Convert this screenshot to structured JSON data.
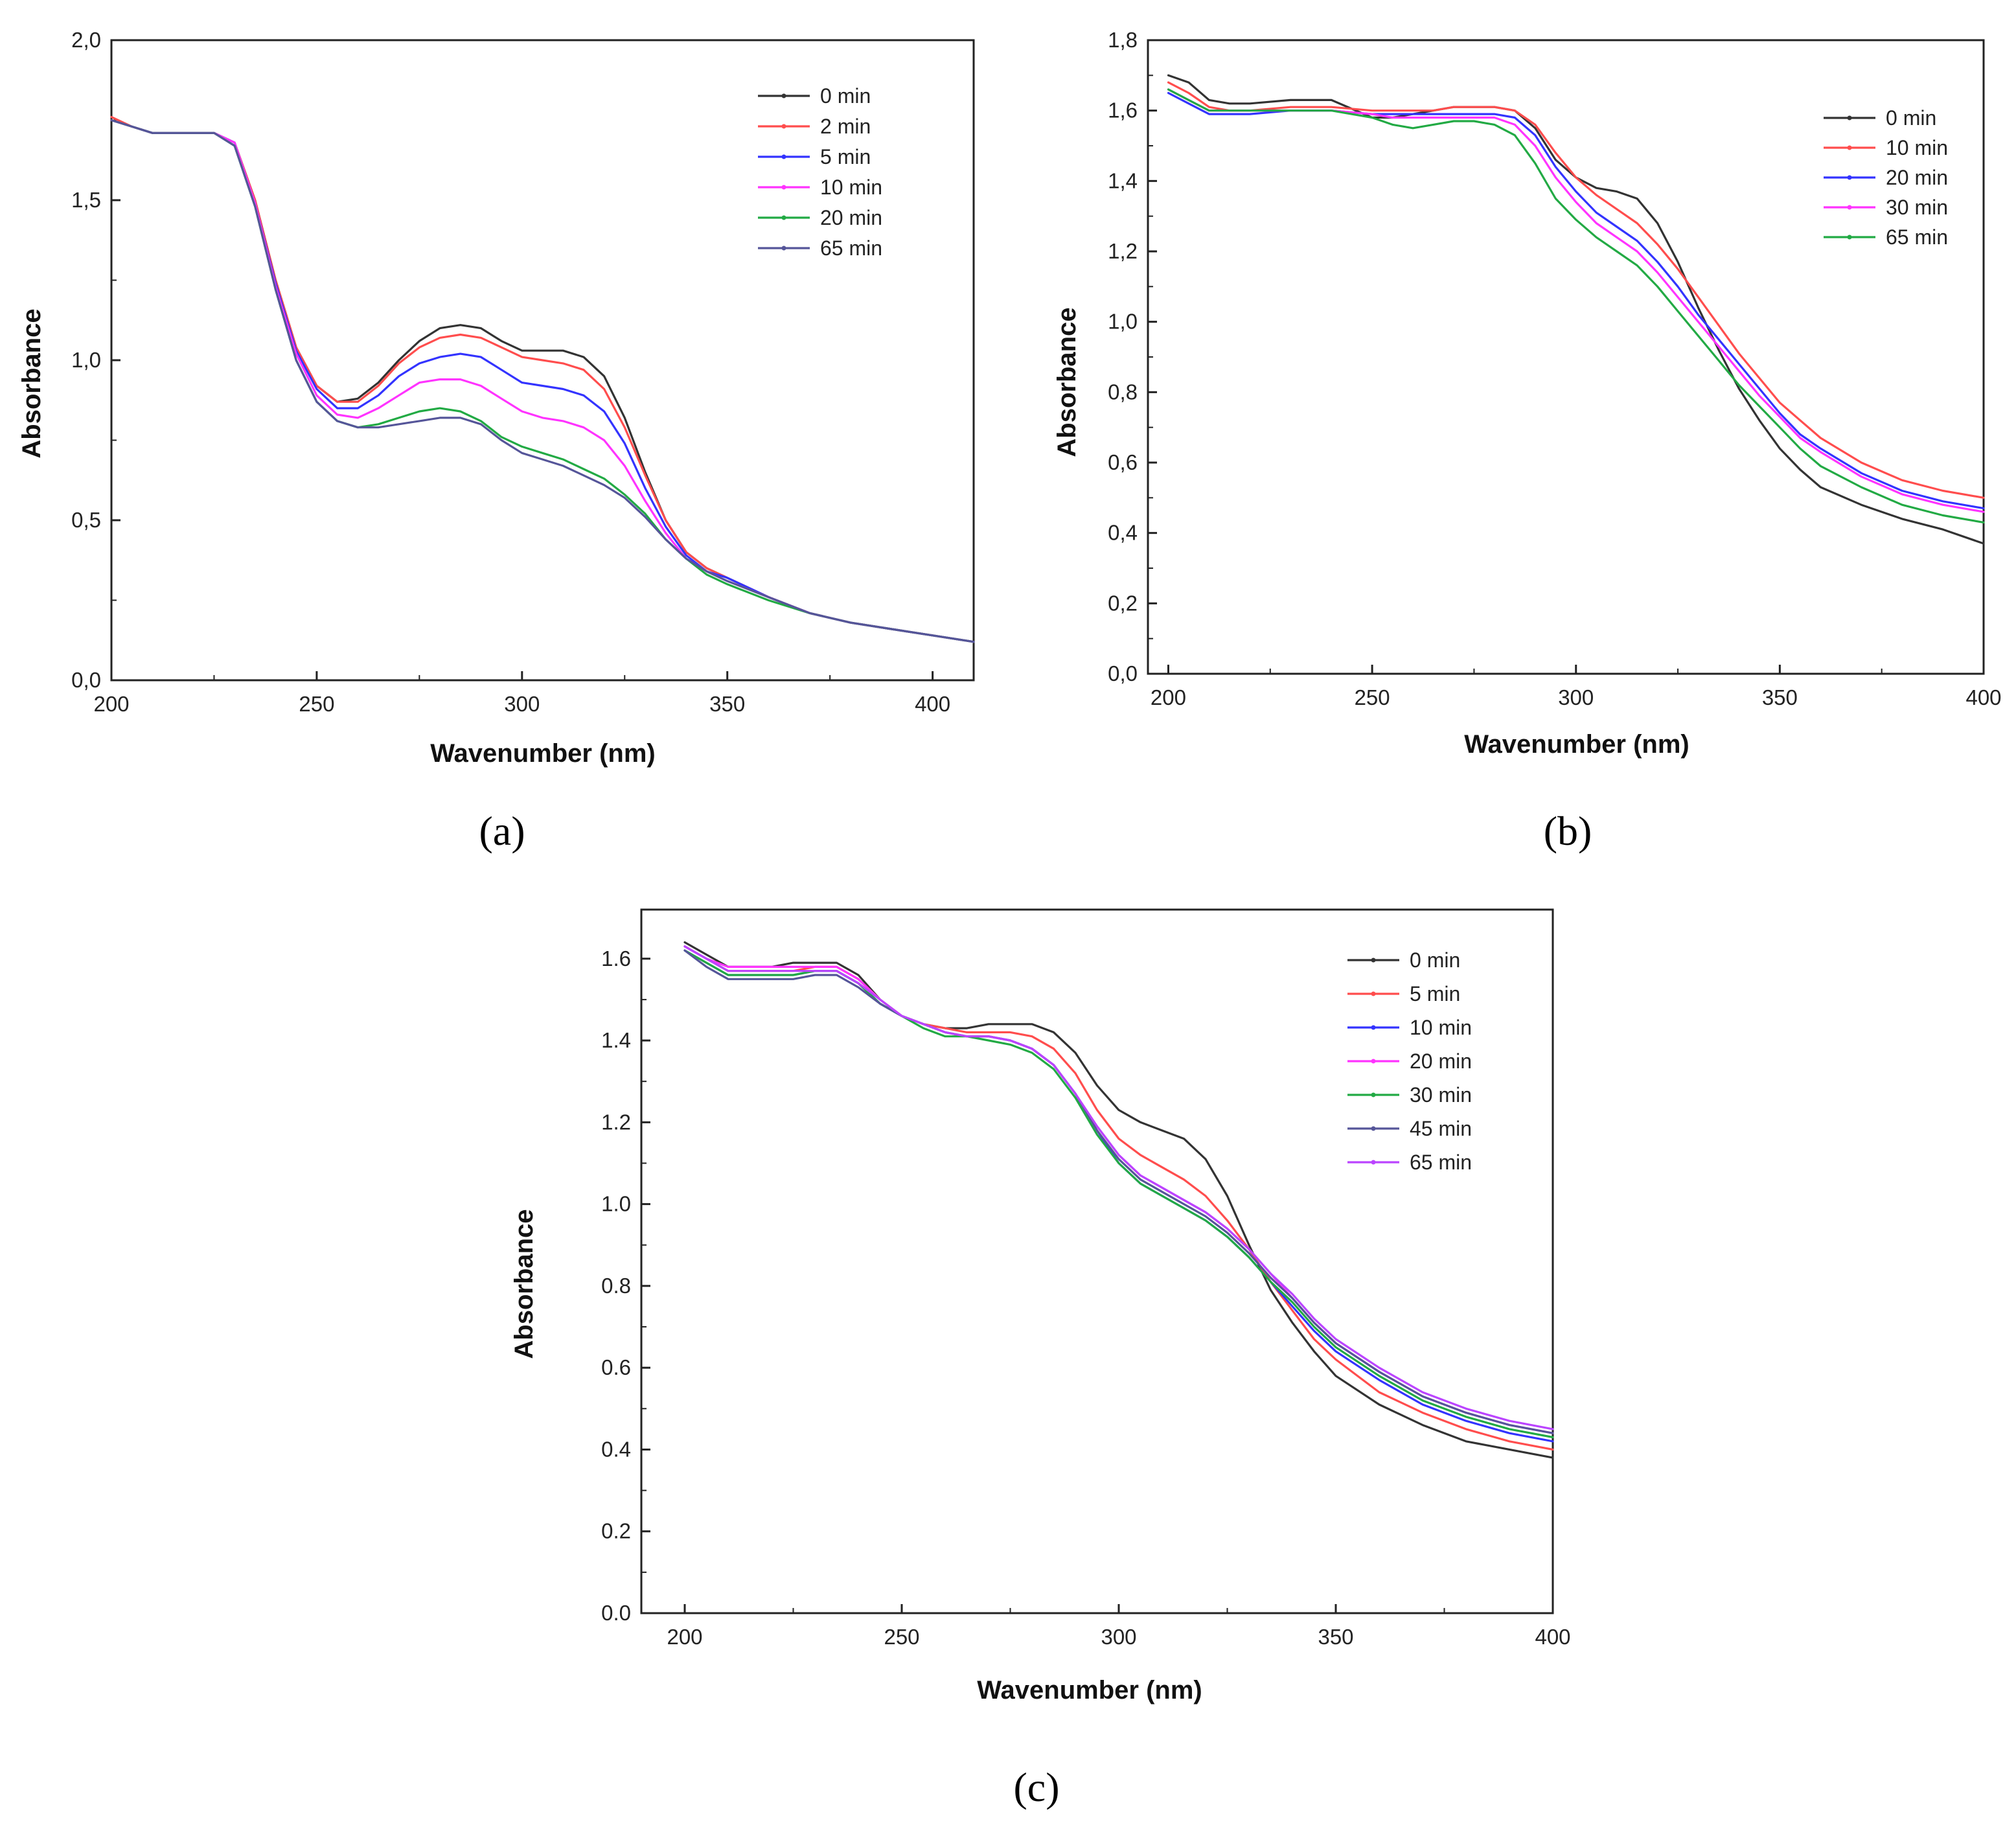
{
  "chart_data": [
    {
      "type": "line",
      "panel_label": "a",
      "caption": "(a)",
      "xlabel": "Wavenumber (nm)",
      "ylabel": "Absorbance",
      "xlim": [
        200,
        410
      ],
      "ylim": [
        0,
        2.0
      ],
      "x_ticks": [
        200,
        250,
        300,
        350,
        400
      ],
      "x_tick_labels": [
        "200",
        "250",
        "300",
        "350",
        "400"
      ],
      "y_ticks": [
        0,
        0.5,
        1.0,
        1.5,
        2.0
      ],
      "y_tick_labels": [
        "0,0",
        "0,5",
        "1,0",
        "1,5",
        "2,0"
      ],
      "grid": false,
      "legend_position": "top-right",
      "x": [
        200,
        205,
        210,
        215,
        220,
        225,
        230,
        235,
        240,
        245,
        250,
        255,
        260,
        265,
        270,
        275,
        280,
        285,
        290,
        295,
        300,
        305,
        310,
        315,
        320,
        325,
        330,
        335,
        340,
        345,
        350,
        360,
        370,
        380,
        390,
        400,
        410
      ],
      "series": [
        {
          "name": "0 min",
          "color": "#333333",
          "values": [
            1.75,
            1.73,
            1.71,
            1.71,
            1.71,
            1.71,
            1.68,
            1.5,
            1.25,
            1.04,
            0.92,
            0.87,
            0.88,
            0.93,
            1.0,
            1.06,
            1.1,
            1.11,
            1.1,
            1.06,
            1.03,
            1.03,
            1.03,
            1.01,
            0.95,
            0.82,
            0.65,
            0.5,
            0.4,
            0.35,
            0.32,
            0.26,
            0.21,
            0.18,
            0.16,
            0.14,
            0.12
          ]
        },
        {
          "name": "2 min",
          "color": "#ff4d4d",
          "values": [
            1.76,
            1.73,
            1.71,
            1.71,
            1.71,
            1.71,
            1.68,
            1.5,
            1.25,
            1.04,
            0.92,
            0.87,
            0.87,
            0.92,
            0.99,
            1.04,
            1.07,
            1.08,
            1.07,
            1.04,
            1.01,
            1.0,
            0.99,
            0.97,
            0.91,
            0.79,
            0.64,
            0.5,
            0.4,
            0.35,
            0.32,
            0.26,
            0.21,
            0.18,
            0.16,
            0.14,
            0.12
          ]
        },
        {
          "name": "5 min",
          "color": "#3333ff",
          "values": [
            1.75,
            1.73,
            1.71,
            1.71,
            1.71,
            1.71,
            1.68,
            1.49,
            1.24,
            1.03,
            0.91,
            0.85,
            0.85,
            0.89,
            0.95,
            0.99,
            1.01,
            1.02,
            1.01,
            0.97,
            0.93,
            0.92,
            0.91,
            0.89,
            0.84,
            0.74,
            0.6,
            0.48,
            0.39,
            0.34,
            0.32,
            0.26,
            0.21,
            0.18,
            0.16,
            0.14,
            0.12
          ]
        },
        {
          "name": "10 min",
          "color": "#ff33ff",
          "values": [
            1.75,
            1.73,
            1.71,
            1.71,
            1.71,
            1.71,
            1.68,
            1.49,
            1.23,
            1.02,
            0.89,
            0.83,
            0.82,
            0.85,
            0.89,
            0.93,
            0.94,
            0.94,
            0.92,
            0.88,
            0.84,
            0.82,
            0.81,
            0.79,
            0.75,
            0.67,
            0.56,
            0.46,
            0.38,
            0.34,
            0.31,
            0.26,
            0.21,
            0.18,
            0.16,
            0.14,
            0.12
          ]
        },
        {
          "name": "20 min",
          "color": "#22aa44",
          "values": [
            1.75,
            1.73,
            1.71,
            1.71,
            1.71,
            1.71,
            1.67,
            1.48,
            1.22,
            1.0,
            0.87,
            0.81,
            0.79,
            0.8,
            0.82,
            0.84,
            0.85,
            0.84,
            0.81,
            0.76,
            0.73,
            0.71,
            0.69,
            0.66,
            0.63,
            0.58,
            0.52,
            0.44,
            0.38,
            0.33,
            0.3,
            0.25,
            0.21,
            0.18,
            0.16,
            0.14,
            0.12
          ]
        },
        {
          "name": "65 min",
          "color": "#555599",
          "values": [
            1.75,
            1.73,
            1.71,
            1.71,
            1.71,
            1.71,
            1.67,
            1.48,
            1.22,
            1.0,
            0.87,
            0.81,
            0.79,
            0.79,
            0.8,
            0.81,
            0.82,
            0.82,
            0.8,
            0.75,
            0.71,
            0.69,
            0.67,
            0.64,
            0.61,
            0.57,
            0.51,
            0.44,
            0.38,
            0.34,
            0.31,
            0.26,
            0.21,
            0.18,
            0.16,
            0.14,
            0.12
          ]
        }
      ]
    },
    {
      "type": "line",
      "panel_label": "b",
      "caption": "(b)",
      "xlabel": "Wavenumber (nm)",
      "ylabel": "Absorbance",
      "xlim": [
        195,
        400
      ],
      "ylim": [
        0,
        1.8
      ],
      "x_ticks": [
        200,
        250,
        300,
        350,
        400
      ],
      "x_tick_labels": [
        "200",
        "250",
        "300",
        "350",
        "400"
      ],
      "y_ticks": [
        0,
        0.2,
        0.4,
        0.6,
        0.8,
        1.0,
        1.2,
        1.4,
        1.6,
        1.8
      ],
      "y_tick_labels": [
        "0,0",
        "0,2",
        "0,4",
        "0,6",
        "0,8",
        "1,0",
        "1,2",
        "1,4",
        "1,6",
        "1,8"
      ],
      "grid": false,
      "legend_position": "top-right",
      "x": [
        200,
        205,
        210,
        215,
        220,
        230,
        240,
        250,
        255,
        260,
        265,
        270,
        275,
        280,
        285,
        290,
        295,
        300,
        305,
        310,
        315,
        320,
        325,
        330,
        335,
        340,
        345,
        350,
        355,
        360,
        370,
        380,
        390,
        400
      ],
      "series": [
        {
          "name": "0 min",
          "color": "#333333",
          "values": [
            1.7,
            1.68,
            1.63,
            1.62,
            1.62,
            1.63,
            1.63,
            1.58,
            1.58,
            1.59,
            1.6,
            1.61,
            1.61,
            1.61,
            1.6,
            1.55,
            1.46,
            1.41,
            1.38,
            1.37,
            1.35,
            1.28,
            1.17,
            1.04,
            0.92,
            0.81,
            0.72,
            0.64,
            0.58,
            0.53,
            0.48,
            0.44,
            0.41,
            0.37
          ]
        },
        {
          "name": "10 min",
          "color": "#ff4d4d",
          "values": [
            1.68,
            1.65,
            1.61,
            1.6,
            1.6,
            1.61,
            1.61,
            1.6,
            1.6,
            1.6,
            1.6,
            1.61,
            1.61,
            1.61,
            1.6,
            1.56,
            1.48,
            1.41,
            1.36,
            1.32,
            1.28,
            1.22,
            1.15,
            1.07,
            0.99,
            0.91,
            0.84,
            0.77,
            0.72,
            0.67,
            0.6,
            0.55,
            0.52,
            0.5
          ]
        },
        {
          "name": "20 min",
          "color": "#3333ff",
          "values": [
            1.65,
            1.62,
            1.59,
            1.59,
            1.59,
            1.6,
            1.6,
            1.59,
            1.59,
            1.59,
            1.59,
            1.59,
            1.59,
            1.59,
            1.58,
            1.53,
            1.44,
            1.37,
            1.31,
            1.27,
            1.23,
            1.17,
            1.1,
            1.02,
            0.95,
            0.88,
            0.81,
            0.74,
            0.68,
            0.64,
            0.57,
            0.52,
            0.49,
            0.47
          ]
        },
        {
          "name": "30 min",
          "color": "#ff33ff",
          "values": [
            1.66,
            1.63,
            1.6,
            1.6,
            1.6,
            1.6,
            1.6,
            1.59,
            1.58,
            1.58,
            1.58,
            1.58,
            1.58,
            1.58,
            1.56,
            1.5,
            1.41,
            1.34,
            1.28,
            1.24,
            1.2,
            1.14,
            1.07,
            1.0,
            0.93,
            0.86,
            0.79,
            0.73,
            0.67,
            0.63,
            0.56,
            0.51,
            0.48,
            0.46
          ]
        },
        {
          "name": "65 min",
          "color": "#22aa44",
          "values": [
            1.66,
            1.63,
            1.6,
            1.6,
            1.6,
            1.6,
            1.6,
            1.58,
            1.56,
            1.55,
            1.56,
            1.57,
            1.57,
            1.56,
            1.53,
            1.45,
            1.35,
            1.29,
            1.24,
            1.2,
            1.16,
            1.1,
            1.03,
            0.96,
            0.89,
            0.82,
            0.76,
            0.7,
            0.64,
            0.59,
            0.53,
            0.48,
            0.45,
            0.43
          ]
        }
      ]
    },
    {
      "type": "line",
      "panel_label": "c",
      "caption": "(c)",
      "xlabel": "Wavenumber (nm)",
      "ylabel": "Absorbance",
      "xlim": [
        190,
        400
      ],
      "ylim": [
        0,
        1.72
      ],
      "x_ticks": [
        200,
        250,
        300,
        350,
        400
      ],
      "x_tick_labels": [
        "200",
        "250",
        "300",
        "350",
        "400"
      ],
      "y_ticks": [
        0,
        0.2,
        0.4,
        0.6,
        0.8,
        1.0,
        1.2,
        1.4,
        1.6
      ],
      "y_tick_labels": [
        "0.0",
        "0.2",
        "0.4",
        "0.6",
        "0.8",
        "1.0",
        "1.2",
        "1.4",
        "1.6"
      ],
      "grid": false,
      "legend_position": "top-right",
      "x": [
        200,
        205,
        210,
        215,
        220,
        225,
        230,
        235,
        240,
        245,
        250,
        255,
        260,
        265,
        270,
        275,
        280,
        285,
        290,
        295,
        300,
        305,
        310,
        315,
        320,
        325,
        330,
        335,
        340,
        345,
        350,
        360,
        370,
        380,
        390,
        400
      ],
      "series": [
        {
          "name": "0 min",
          "color": "#333333",
          "values": [
            1.64,
            1.61,
            1.58,
            1.58,
            1.58,
            1.59,
            1.59,
            1.59,
            1.56,
            1.5,
            1.46,
            1.44,
            1.43,
            1.43,
            1.44,
            1.44,
            1.44,
            1.42,
            1.37,
            1.29,
            1.23,
            1.2,
            1.18,
            1.16,
            1.11,
            1.02,
            0.9,
            0.79,
            0.71,
            0.64,
            0.58,
            0.51,
            0.46,
            0.42,
            0.4,
            0.38
          ]
        },
        {
          "name": "5 min",
          "color": "#ff4d4d",
          "values": [
            1.63,
            1.6,
            1.57,
            1.57,
            1.57,
            1.57,
            1.58,
            1.58,
            1.55,
            1.5,
            1.46,
            1.44,
            1.43,
            1.42,
            1.42,
            1.42,
            1.41,
            1.38,
            1.32,
            1.23,
            1.16,
            1.12,
            1.09,
            1.06,
            1.02,
            0.96,
            0.89,
            0.81,
            0.74,
            0.67,
            0.62,
            0.54,
            0.49,
            0.45,
            0.42,
            0.4
          ]
        },
        {
          "name": "10 min",
          "color": "#3333ff",
          "values": [
            1.62,
            1.59,
            1.56,
            1.56,
            1.56,
            1.56,
            1.57,
            1.57,
            1.54,
            1.49,
            1.46,
            1.44,
            1.42,
            1.41,
            1.41,
            1.4,
            1.38,
            1.34,
            1.27,
            1.18,
            1.1,
            1.05,
            1.02,
            0.99,
            0.96,
            0.92,
            0.87,
            0.81,
            0.75,
            0.69,
            0.64,
            0.57,
            0.51,
            0.47,
            0.44,
            0.42
          ]
        },
        {
          "name": "20 min",
          "color": "#ff33ff",
          "values": [
            1.63,
            1.6,
            1.58,
            1.58,
            1.58,
            1.58,
            1.58,
            1.58,
            1.55,
            1.5,
            1.46,
            1.44,
            1.42,
            1.41,
            1.41,
            1.4,
            1.38,
            1.34,
            1.27,
            1.19,
            1.12,
            1.07,
            1.04,
            1.01,
            0.98,
            0.94,
            0.89,
            0.83,
            0.77,
            0.71,
            0.66,
            0.59,
            0.53,
            0.49,
            0.46,
            0.44
          ]
        },
        {
          "name": "30 min",
          "color": "#22aa44",
          "values": [
            1.62,
            1.59,
            1.56,
            1.56,
            1.56,
            1.56,
            1.57,
            1.57,
            1.54,
            1.49,
            1.46,
            1.43,
            1.41,
            1.41,
            1.4,
            1.39,
            1.37,
            1.33,
            1.26,
            1.17,
            1.1,
            1.05,
            1.02,
            0.99,
            0.96,
            0.92,
            0.87,
            0.81,
            0.76,
            0.7,
            0.65,
            0.58,
            0.52,
            0.48,
            0.45,
            0.43
          ]
        },
        {
          "name": "45 min",
          "color": "#555599",
          "values": [
            1.62,
            1.58,
            1.55,
            1.55,
            1.55,
            1.55,
            1.56,
            1.56,
            1.53,
            1.49,
            1.46,
            1.44,
            1.42,
            1.41,
            1.41,
            1.4,
            1.38,
            1.34,
            1.27,
            1.18,
            1.11,
            1.06,
            1.03,
            1.0,
            0.97,
            0.93,
            0.88,
            0.82,
            0.77,
            0.71,
            0.66,
            0.59,
            0.53,
            0.49,
            0.46,
            0.44
          ]
        },
        {
          "name": "65 min",
          "color": "#bb44ff",
          "values": [
            1.63,
            1.6,
            1.57,
            1.57,
            1.57,
            1.57,
            1.57,
            1.57,
            1.54,
            1.5,
            1.46,
            1.44,
            1.42,
            1.41,
            1.41,
            1.4,
            1.38,
            1.34,
            1.27,
            1.19,
            1.12,
            1.07,
            1.04,
            1.01,
            0.98,
            0.94,
            0.89,
            0.83,
            0.78,
            0.72,
            0.67,
            0.6,
            0.54,
            0.5,
            0.47,
            0.45
          ]
        }
      ]
    }
  ]
}
